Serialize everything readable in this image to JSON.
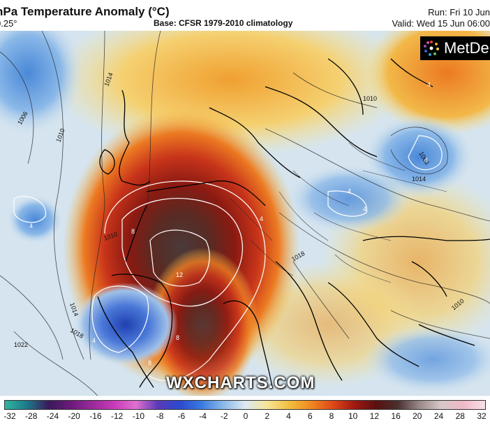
{
  "header": {
    "title": "hPa Temperature Anomaly (°C)",
    "subtitle_left": "0.25°",
    "base": "Base: CFSR 1979-2010 climatology",
    "run": "Run: Fri 10 Jun",
    "valid": "Valid: Wed 15 Jun 06:00"
  },
  "brand": {
    "name": "MetDe",
    "icon": "metdesk-star-icon"
  },
  "watermark": "WXCHARTS.COM",
  "legend": {
    "ticks": [
      "-32",
      "-28",
      "-24",
      "-20",
      "-16",
      "-12",
      "-10",
      "-8",
      "-6",
      "-4",
      "-2",
      "0",
      "2",
      "4",
      "6",
      "8",
      "10",
      "12",
      "16",
      "20",
      "24",
      "28",
      "32"
    ],
    "colors": [
      "#2fb5a0",
      "#1d7a8a",
      "#3a1a5a",
      "#6a1a7a",
      "#9a2a9a",
      "#c83ab8",
      "#e070d0",
      "#5a3ab8",
      "#2a4ad0",
      "#3a7ae0",
      "#8ab8e8",
      "#dce8f2",
      "#f5e59a",
      "#f2c040",
      "#f08a20",
      "#e04a18",
      "#a01a10",
      "#5a1010",
      "#4a3030",
      "#9a8a88",
      "#d8c8c8",
      "#f0b8c8",
      "#f8e0e8"
    ]
  },
  "map": {
    "isobar_labels": [
      "1006",
      "1010",
      "1014",
      "1010",
      "1014",
      "1018",
      "1022",
      "1006",
      "1014",
      "1010",
      "1018",
      "1010"
    ],
    "anomaly_labels": [
      "4",
      "4",
      "4",
      "8",
      "12",
      "8",
      "4",
      "4",
      "4",
      "4",
      "8"
    ]
  }
}
